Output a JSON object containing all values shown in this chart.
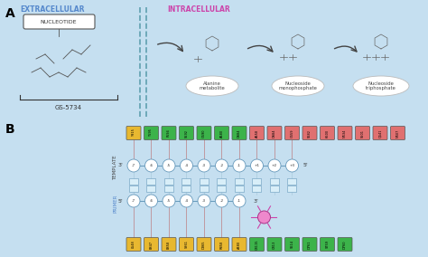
{
  "bg_color": "#cce4f0",
  "panel_a": {
    "extracellular_label": "EXTRACELLULAR",
    "intracellular_label": "INTRACELLULAR",
    "nucleotide_label": "NUCLEOTIDE",
    "gs5734_label": "GS-5734",
    "metabolites": [
      "Alanine\nmetabolite",
      "Nucleoside\nmonophosphate",
      "Nucleoside\ntriphosphate"
    ]
  },
  "panel_b": {
    "top_labels_yellow": [
      "Y915"
    ],
    "top_labels_green": [
      "Y595",
      "F594",
      "S592",
      "G590",
      "A580",
      "D684"
    ],
    "top_labels_pink": [
      "A558",
      "D684",
      "G559",
      "S682",
      "K500",
      "N534",
      "S501",
      "Q541",
      "N507"
    ],
    "bottom_labels_yellow": [
      "L548",
      "B847",
      "B858",
      "S861",
      "D865",
      "R858",
      "A480"
    ],
    "bottom_labels_green": [
      "C8115",
      "C813",
      "S614",
      "D761",
      "S759",
      "D760"
    ],
    "template_label": "TEMPLATE",
    "primer_label": "PRIMER",
    "positions_top": [
      "-7",
      "-6",
      "-5",
      "-4",
      "-3",
      "-2",
      "-1",
      "+1",
      "+2",
      "+3"
    ],
    "positions_bottom": [
      "-7",
      "-6",
      "-5",
      "-4",
      "-3",
      "-2",
      "-1"
    ]
  },
  "colors": {
    "yellow": "#e8b830",
    "green": "#3cb34a",
    "pink": "#e07070",
    "light_blue": "#a8d4e8",
    "bg": "#c5dff0",
    "text_blue_a": "#5588cc",
    "text_pink": "#cc44aa",
    "strand_blue": "#6699bb",
    "bond": "#555555"
  }
}
